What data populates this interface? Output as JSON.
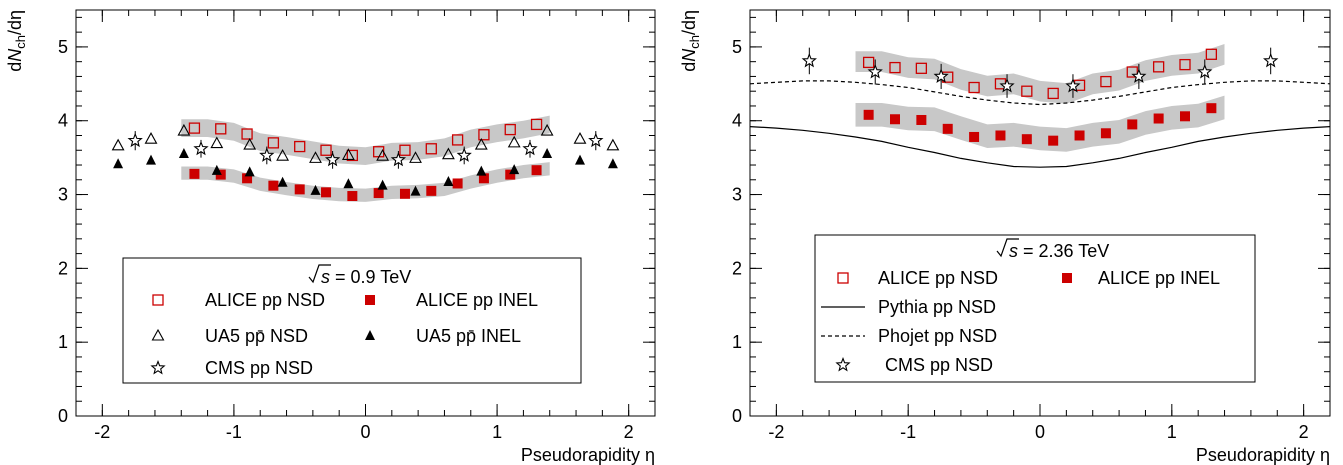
{
  "chart_data": [
    {
      "type": "scatter",
      "id": "panel-09",
      "xlabel": "Pseudorapidity η",
      "ylabel": "dN_ch/dη",
      "ylabel_parts": {
        "d": "d",
        "N": "N",
        "sub": "ch",
        "rest": "/dη"
      },
      "xlim": [
        -2.2,
        2.2
      ],
      "ylim": [
        0,
        5.5
      ],
      "xticks": [
        -2,
        -1,
        0,
        1,
        2
      ],
      "yticks": [
        0,
        1,
        2,
        3,
        4,
        5
      ],
      "xtick_labels": [
        "-2",
        "-1",
        "0",
        "1",
        "2"
      ],
      "ytick_labels": [
        "0",
        "1",
        "2",
        "3",
        "4",
        "5"
      ],
      "legend": {
        "header": "= 0.9 TeV",
        "header_sqrt": "s",
        "entries": [
          {
            "label": "ALICE pp NSD",
            "marker": "open-square",
            "color": "#cc0000"
          },
          {
            "label": "ALICE pp INEL",
            "marker": "filled-square",
            "color": "#cc0000"
          },
          {
            "label": "UA5 pp̄ NSD",
            "marker": "open-triangle",
            "color": "#000000"
          },
          {
            "label": "UA5 pp̄ INEL",
            "marker": "filled-triangle",
            "color": "#000000"
          },
          {
            "label": "CMS pp NSD",
            "marker": "open-star",
            "color": "#000000"
          }
        ]
      },
      "series": [
        {
          "name": "ALICE pp NSD",
          "marker": "open-square",
          "color": "#cc0000",
          "band": {
            "lo": [
              3.78,
              3.78,
              3.73,
              3.59,
              3.54,
              3.48,
              3.42,
              3.4,
              3.46,
              3.47,
              3.52,
              3.64,
              3.71,
              3.76,
              3.83
            ],
            "hi": [
              4.02,
              4.02,
              3.97,
              3.83,
              3.78,
              3.72,
              3.66,
              3.64,
              3.7,
              3.71,
              3.76,
              3.88,
              3.95,
              4.0,
              4.07
            ]
          },
          "x": [
            -1.3,
            -1.1,
            -0.9,
            -0.7,
            -0.5,
            -0.3,
            -0.1,
            0.1,
            0.3,
            0.5,
            0.7,
            0.9,
            1.1,
            1.3
          ],
          "y": [
            3.9,
            3.89,
            3.82,
            3.7,
            3.65,
            3.6,
            3.53,
            3.58,
            3.6,
            3.62,
            3.74,
            3.81,
            3.88,
            3.95
          ]
        },
        {
          "name": "ALICE pp INEL",
          "marker": "filled-square",
          "color": "#cc0000",
          "band": {
            "lo": [
              3.2,
              3.2,
              3.16,
              3.05,
              2.99,
              2.94,
              2.91,
              2.9,
              2.94,
              2.95,
              2.98,
              3.08,
              3.16,
              3.22,
              3.26
            ],
            "hi": [
              3.38,
              3.38,
              3.34,
              3.23,
              3.17,
              3.12,
              3.09,
              3.08,
              3.12,
              3.13,
              3.16,
              3.26,
              3.34,
              3.4,
              3.44
            ]
          },
          "x": [
            -1.3,
            -1.1,
            -0.9,
            -0.7,
            -0.5,
            -0.3,
            -0.1,
            0.1,
            0.3,
            0.5,
            0.7,
            0.9,
            1.1,
            1.3
          ],
          "y": [
            3.28,
            3.27,
            3.22,
            3.12,
            3.07,
            3.03,
            2.98,
            3.02,
            3.01,
            3.05,
            3.15,
            3.22,
            3.27,
            3.33
          ]
        },
        {
          "name": "UA5 pp̄ NSD",
          "marker": "open-triangle",
          "color": "#000000",
          "x": [
            -1.88,
            -1.63,
            -1.38,
            -1.13,
            -0.88,
            -0.63,
            -0.38,
            -0.13,
            0.13,
            0.38,
            0.63,
            0.88,
            1.13,
            1.38,
            1.63,
            1.88
          ],
          "y": [
            3.66,
            3.75,
            3.86,
            3.69,
            3.67,
            3.52,
            3.49,
            3.53,
            3.52,
            3.49,
            3.54,
            3.67,
            3.7,
            3.86,
            3.75,
            3.66
          ]
        },
        {
          "name": "UA5 pp̄ INEL",
          "marker": "filled-triangle",
          "color": "#000000",
          "x": [
            -1.88,
            -1.63,
            -1.38,
            -1.13,
            -0.88,
            -0.63,
            -0.38,
            -0.13,
            0.13,
            0.38,
            0.63,
            0.88,
            1.13,
            1.38,
            1.63,
            1.88
          ],
          "y": [
            3.41,
            3.46,
            3.55,
            3.32,
            3.3,
            3.16,
            3.05,
            3.14,
            3.12,
            3.04,
            3.17,
            3.31,
            3.33,
            3.55,
            3.46,
            3.41
          ]
        },
        {
          "name": "CMS pp NSD",
          "marker": "open-star",
          "color": "#000000",
          "x": [
            -1.75,
            -1.25,
            -0.75,
            -0.25,
            0.25,
            0.75,
            1.25,
            1.75
          ],
          "y": [
            3.73,
            3.62,
            3.53,
            3.47,
            3.47,
            3.53,
            3.62,
            3.73
          ],
          "err": [
            0.13,
            0.12,
            0.12,
            0.12,
            0.12,
            0.12,
            0.12,
            0.13
          ]
        }
      ]
    },
    {
      "type": "scatter",
      "id": "panel-236",
      "xlabel": "Pseudorapidity η",
      "ylabel": "dN_ch/dη",
      "ylabel_parts": {
        "d": "d",
        "N": "N",
        "sub": "ch",
        "rest": "/dη"
      },
      "xlim": [
        -2.2,
        2.2
      ],
      "ylim": [
        0,
        5.5
      ],
      "xticks": [
        -2,
        -1,
        0,
        1,
        2
      ],
      "yticks": [
        0,
        1,
        2,
        3,
        4,
        5
      ],
      "xtick_labels": [
        "-2",
        "-1",
        "0",
        "1",
        "2"
      ],
      "ytick_labels": [
        "0",
        "1",
        "2",
        "3",
        "4",
        "5"
      ],
      "legend": {
        "header": "= 2.36 TeV",
        "header_sqrt": "s",
        "entries": [
          {
            "label": "ALICE pp NSD",
            "marker": "open-square",
            "color": "#cc0000"
          },
          {
            "label": "ALICE pp INEL",
            "marker": "filled-square",
            "color": "#cc0000"
          },
          {
            "label": "Pythia pp NSD",
            "marker": "solid-line",
            "color": "#000000"
          },
          {
            "label": "Phojet pp NSD",
            "marker": "dashed-line",
            "color": "#000000"
          },
          {
            "label": "CMS pp NSD",
            "marker": "open-star",
            "color": "#000000"
          }
        ]
      },
      "series": [
        {
          "name": "ALICE pp NSD",
          "marker": "open-square",
          "color": "#cc0000",
          "band": {
            "lo": [
              4.66,
              4.66,
              4.58,
              4.56,
              4.42,
              4.33,
              4.36,
              4.26,
              4.23,
              4.36,
              4.41,
              4.54,
              4.61,
              4.64,
              4.76
            ],
            "hi": [
              4.94,
              4.94,
              4.86,
              4.84,
              4.7,
              4.61,
              4.64,
              4.54,
              4.51,
              4.64,
              4.69,
              4.82,
              4.89,
              4.92,
              5.04
            ]
          },
          "x": [
            -1.3,
            -1.1,
            -0.9,
            -0.7,
            -0.5,
            -0.3,
            -0.1,
            0.1,
            0.3,
            0.5,
            0.7,
            0.9,
            1.1,
            1.3
          ],
          "y": [
            4.79,
            4.72,
            4.71,
            4.59,
            4.45,
            4.5,
            4.4,
            4.37,
            4.48,
            4.53,
            4.66,
            4.73,
            4.76,
            4.9
          ]
        },
        {
          "name": "ALICE pp INEL",
          "marker": "filled-square",
          "color": "#cc0000",
          "band": {
            "lo": [
              3.92,
              3.92,
              3.87,
              3.86,
              3.74,
              3.63,
              3.65,
              3.6,
              3.58,
              3.65,
              3.69,
              3.81,
              3.88,
              3.91,
              4.02
            ],
            "hi": [
              4.24,
              4.24,
              4.19,
              4.18,
              4.06,
              3.95,
              3.97,
              3.92,
              3.9,
              3.97,
              4.01,
              4.13,
              4.2,
              4.23,
              4.34
            ]
          },
          "x": [
            -1.3,
            -1.1,
            -0.9,
            -0.7,
            -0.5,
            -0.3,
            -0.1,
            0.1,
            0.3,
            0.5,
            0.7,
            0.9,
            1.1,
            1.3
          ],
          "y": [
            4.08,
            4.02,
            4.01,
            3.89,
            3.78,
            3.8,
            3.75,
            3.73,
            3.8,
            3.83,
            3.95,
            4.03,
            4.06,
            4.17
          ]
        },
        {
          "name": "Pythia pp NSD",
          "marker": "solid-line",
          "color": "#000000",
          "x": [
            -2.2,
            -2.0,
            -1.8,
            -1.6,
            -1.4,
            -1.2,
            -1.0,
            -0.8,
            -0.6,
            -0.4,
            -0.2,
            0.0,
            0.2,
            0.4,
            0.6,
            0.8,
            1.0,
            1.2,
            1.4,
            1.6,
            1.8,
            2.0,
            2.2
          ],
          "y": [
            3.92,
            3.9,
            3.87,
            3.83,
            3.78,
            3.72,
            3.64,
            3.57,
            3.49,
            3.43,
            3.38,
            3.37,
            3.38,
            3.43,
            3.49,
            3.57,
            3.64,
            3.72,
            3.78,
            3.83,
            3.87,
            3.9,
            3.92
          ]
        },
        {
          "name": "Phojet pp NSD",
          "marker": "dashed-line",
          "color": "#000000",
          "x": [
            -2.2,
            -2.0,
            -1.8,
            -1.6,
            -1.4,
            -1.2,
            -1.0,
            -0.8,
            -0.6,
            -0.4,
            -0.2,
            0.0,
            0.2,
            0.4,
            0.6,
            0.8,
            1.0,
            1.2,
            1.4,
            1.6,
            1.8,
            2.0,
            2.2
          ],
          "y": [
            4.5,
            4.52,
            4.54,
            4.54,
            4.52,
            4.49,
            4.45,
            4.39,
            4.33,
            4.28,
            4.24,
            4.22,
            4.24,
            4.28,
            4.33,
            4.39,
            4.45,
            4.49,
            4.52,
            4.54,
            4.54,
            4.52,
            4.5
          ]
        },
        {
          "name": "CMS pp NSD",
          "marker": "open-star",
          "color": "#000000",
          "x": [
            -1.75,
            -1.25,
            -0.75,
            -0.25,
            0.25,
            0.75,
            1.25,
            1.75
          ],
          "y": [
            4.81,
            4.66,
            4.6,
            4.47,
            4.47,
            4.6,
            4.66,
            4.81
          ],
          "err": [
            0.18,
            0.17,
            0.17,
            0.16,
            0.16,
            0.17,
            0.17,
            0.18
          ]
        }
      ]
    }
  ]
}
